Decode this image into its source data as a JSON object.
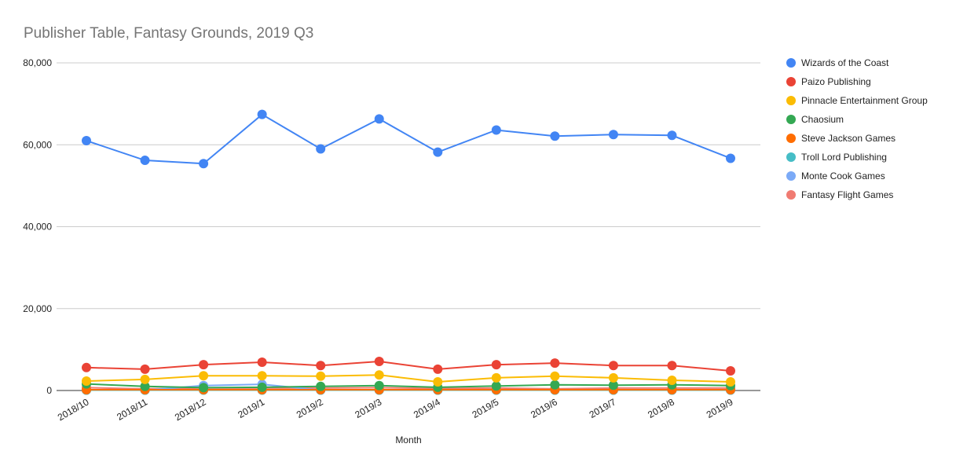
{
  "chart_data": {
    "type": "line",
    "title": "Publisher Table, Fantasy Grounds, 2019 Q3",
    "xlabel": "Month",
    "ylabel": "",
    "ylim": [
      0,
      80000
    ],
    "yticks": [
      0,
      20000,
      40000,
      60000,
      80000
    ],
    "ytick_labels": [
      "0",
      "20,000",
      "40,000",
      "60,000",
      "80,000"
    ],
    "grid": true,
    "legend_position": "right",
    "categories": [
      "2018/10",
      "2018/11",
      "2018/12",
      "2019/1",
      "2019/2",
      "2019/3",
      "2019/4",
      "2019/5",
      "2019/6",
      "2019/7",
      "2019/8",
      "2019/9"
    ],
    "series": [
      {
        "name": "Wizards of the Coast",
        "color": "#4285f4",
        "values": [
          61000,
          56200,
          55400,
          67400,
          59000,
          66300,
          58200,
          63600,
          62100,
          62500,
          62300,
          56700
        ]
      },
      {
        "name": "Paizo Publishing",
        "color": "#ea4335",
        "values": [
          5600,
          5200,
          6300,
          6900,
          6100,
          7100,
          5200,
          6300,
          6700,
          6100,
          6100,
          4800
        ]
      },
      {
        "name": "Pinnacle Entertainment Group",
        "color": "#fbbc04",
        "values": [
          2300,
          2700,
          3600,
          3600,
          3500,
          3800,
          2100,
          3100,
          3500,
          3100,
          2500,
          2100
        ]
      },
      {
        "name": "Chaosium",
        "color": "#34a853",
        "values": [
          1600,
          1000,
          700,
          800,
          1000,
          1200,
          800,
          1100,
          1400,
          1300,
          1400,
          1200
        ]
      },
      {
        "name": "Steve Jackson Games",
        "color": "#ff6d01",
        "values": [
          200,
          200,
          200,
          200,
          200,
          200,
          200,
          200,
          200,
          200,
          200,
          200
        ]
      },
      {
        "name": "Troll Lord Publishing",
        "color": "#46bdc6",
        "values": [
          100,
          100,
          100,
          100,
          100,
          100,
          100,
          100,
          100,
          100,
          100,
          100
        ]
      },
      {
        "name": "Monte Cook Games",
        "color": "#7baaf7",
        "values": [
          100,
          100,
          1200,
          1500,
          100,
          100,
          100,
          100,
          100,
          100,
          100,
          100
        ]
      },
      {
        "name": "Fantasy Flight Games",
        "color": "#f07b72",
        "values": [
          700,
          400,
          600,
          600,
          600,
          700,
          500,
          600,
          400,
          600,
          600,
          600
        ]
      }
    ]
  }
}
